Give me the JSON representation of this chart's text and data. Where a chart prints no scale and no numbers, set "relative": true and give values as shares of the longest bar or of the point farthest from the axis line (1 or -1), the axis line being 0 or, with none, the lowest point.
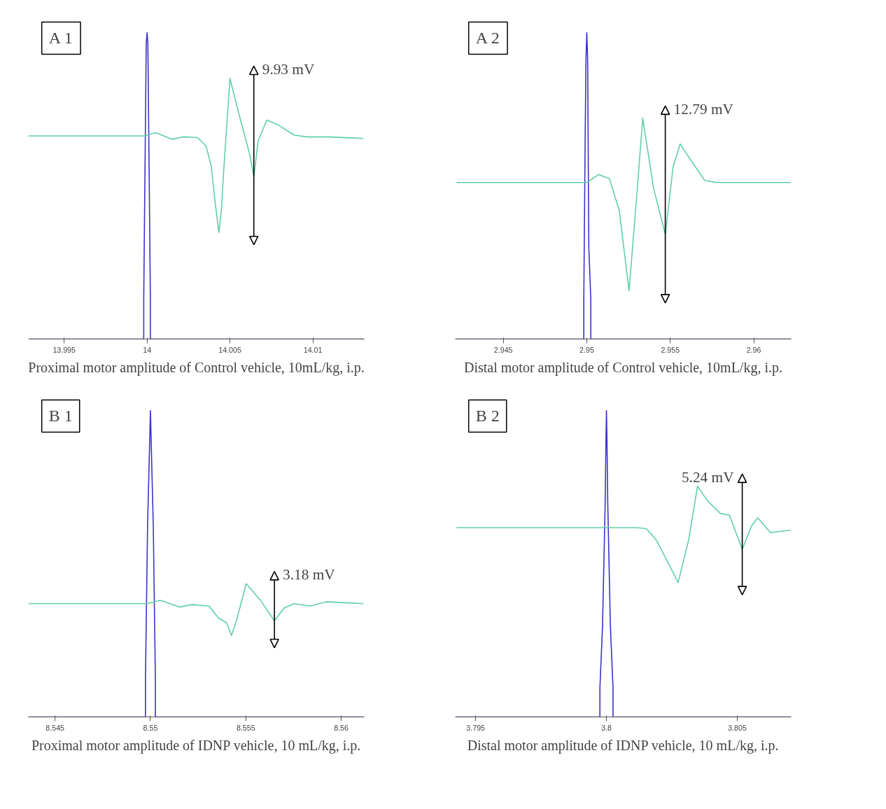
{
  "chart_data": [
    {
      "type": "line",
      "title": "A 1",
      "relative": true,
      "tick_labels": "x",
      "xlim": [
        13.99284,
        14.0131
      ],
      "xticks": [
        13.995,
        14,
        14.005,
        14.01
      ],
      "series": [
        {
          "color": "#3c33c8",
          "x": [
            13.9929,
            13.9998,
            13.9998,
            13.99985,
            13.9999,
            13.99995,
            14.0,
            14.00005,
            14.0001,
            14.00015,
            14.0002,
            14.0002,
            14.0131
          ],
          "values": [
            0,
            0,
            0.136,
            0.413,
            0.687,
            0.965,
            1,
            0.965,
            0.687,
            0.413,
            0.136,
            0,
            0
          ]
        },
        {
          "color": "#5fd0a5",
          "x": [
            13.99284,
            13.99985,
            14.00052,
            14.0015,
            14.00217,
            14.00304,
            14.00356,
            14.00387,
            14.00412,
            14.00433,
            14.00448,
            14.00464,
            14.005,
            14.00552,
            14.00619,
            14.00644,
            14.0067,
            14.00722,
            14.00784,
            14.00887,
            14.00964,
            14.01093,
            14.01304
          ],
          "values": [
            0.663,
            0.663,
            0.674,
            0.652,
            0.66,
            0.658,
            0.63,
            0.565,
            0.44,
            0.348,
            0.421,
            0.565,
            0.851,
            0.739,
            0.603,
            0.53,
            0.647,
            0.715,
            0.701,
            0.666,
            0.66,
            0.66,
            0.655
          ]
        }
      ],
      "annotations": [
        "9.93 mV",
        "Proximal motor amplitude of Control vehicle, 10mL/kg, i.p."
      ]
    },
    {
      "type": "line",
      "title": "A 2",
      "relative": true,
      "tick_labels": "x",
      "xlim": [
        2.94212,
        2.96224
      ],
      "xticks": [
        2.945,
        2.95,
        2.955,
        2.96
      ],
      "series": [
        {
          "color": "#3c33c8",
          "x": [
            2.94212,
            2.94982,
            2.94982,
            2.9499,
            2.94995,
            2.95,
            2.95005,
            2.95012,
            2.95024,
            2.95024,
            2.96224
          ],
          "values": [
            0,
            0,
            0.129,
            0.65,
            0.913,
            1,
            0.913,
            0.3,
            0.129,
            0,
            0
          ]
        },
        {
          "color": "#5fd0a5",
          "x": [
            2.9422,
            2.95,
            2.95071,
            2.95135,
            2.95194,
            2.95253,
            2.953,
            2.95335,
            2.954,
            2.9547,
            2.95517,
            2.95559,
            2.95629,
            2.95706,
            2.95776,
            2.96223
          ],
          "values": [
            0.511,
            0.511,
            0.537,
            0.524,
            0.421,
            0.158,
            0.474,
            0.721,
            0.492,
            0.342,
            0.563,
            0.637,
            0.579,
            0.518,
            0.511,
            0.511
          ]
        }
      ],
      "annotations": [
        "12.79 mV",
        "Distal motor amplitude of Control vehicle, 10mL/kg, i.p."
      ]
    },
    {
      "type": "line",
      "title": "B 1",
      "relative": true,
      "tick_labels": "x",
      "xlim": [
        8.5436,
        8.56121
      ],
      "xticks": [
        8.545,
        8.55,
        8.555,
        8.56
      ],
      "series": [
        {
          "color": "#3c33c8",
          "x": [
            8.5436,
            8.54974,
            8.54974,
            8.54985,
            8.54995,
            8.55,
            8.55005,
            8.55015,
            8.55026,
            8.55026,
            8.56121
          ],
          "values": [
            0,
            0,
            0.124,
            0.624,
            0.873,
            1,
            0.873,
            0.624,
            0.124,
            0,
            0
          ]
        },
        {
          "color": "#5fd0a5",
          "x": [
            8.5436,
            8.54985,
            8.55051,
            8.55154,
            8.5522,
            8.55307,
            8.55358,
            8.55399,
            8.55425,
            8.55451,
            8.55502,
            8.55579,
            8.5565,
            8.55701,
            8.55753,
            8.55835,
            8.55922,
            8.56116
          ],
          "values": [
            0.37,
            0.37,
            0.381,
            0.359,
            0.367,
            0.362,
            0.322,
            0.308,
            0.266,
            0.314,
            0.435,
            0.379,
            0.314,
            0.356,
            0.37,
            0.362,
            0.376,
            0.37
          ]
        }
      ],
      "annotations": [
        "3.18 mV",
        "Proximal motor amplitude of IDNP vehicle, 10 mL/kg, i.p."
      ]
    },
    {
      "type": "line",
      "title": "B 2",
      "relative": true,
      "tick_labels": "x",
      "xlim": [
        3.79422,
        3.80706
      ],
      "xticks": [
        3.795,
        3.8,
        3.805
      ],
      "series": [
        {
          "color": "#3c33c8",
          "x": [
            3.79422,
            3.79975,
            3.79975,
            3.79985,
            3.7999,
            3.79995,
            3.79998,
            3.8,
            3.80002,
            3.80005,
            3.8001,
            3.80015,
            3.80025,
            3.80025,
            3.80706
          ],
          "values": [
            0,
            0,
            0.095,
            0.298,
            0.496,
            0.696,
            0.9,
            1,
            0.9,
            0.696,
            0.496,
            0.298,
            0.095,
            0,
            0
          ]
        },
        {
          "color": "#5fd0a5",
          "x": [
            3.79427,
            3.80113,
            3.80152,
            3.80191,
            3.8024,
            3.80274,
            3.80314,
            3.80348,
            3.80387,
            3.80436,
            3.8047,
            3.80519,
            3.80554,
            3.80578,
            3.80627,
            3.80706
          ],
          "values": [
            0.618,
            0.618,
            0.615,
            0.577,
            0.496,
            0.439,
            0.577,
            0.753,
            0.705,
            0.664,
            0.659,
            0.547,
            0.623,
            0.65,
            0.602,
            0.61
          ]
        }
      ],
      "annotations": [
        "5.24 mV",
        "Distal motor amplitude of IDNP vehicle, 10 mL/kg, i.p."
      ]
    }
  ]
}
